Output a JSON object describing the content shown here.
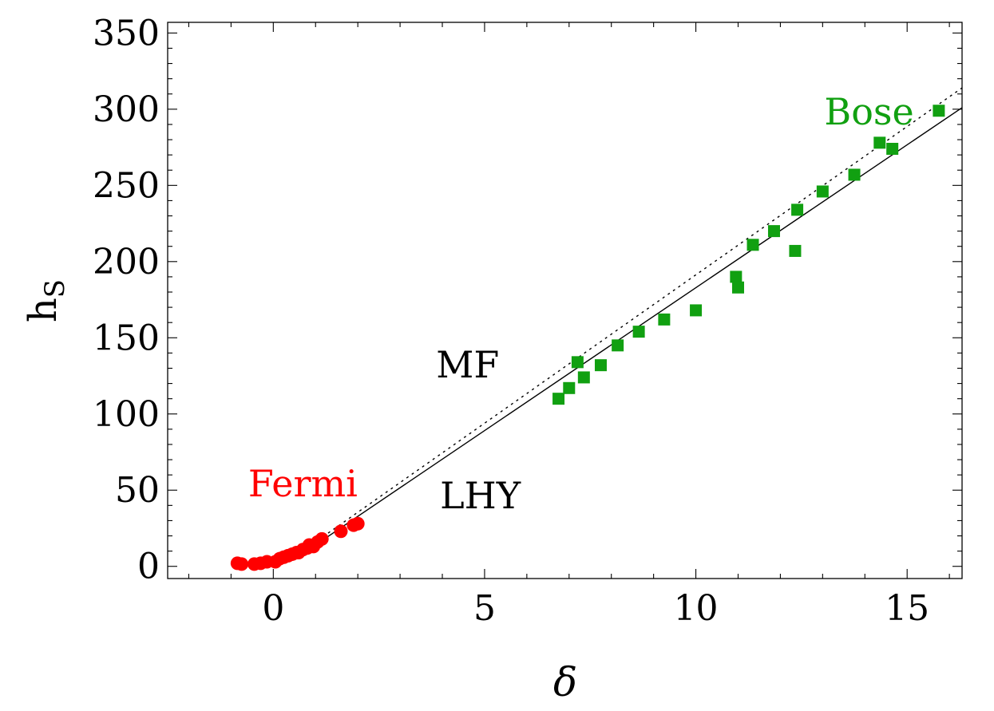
{
  "chart_data": {
    "type": "scatter",
    "xlabel": "δ",
    "ylabel": "h",
    "ylabel_subscript": "S",
    "xlim": [
      -2.5,
      16.3
    ],
    "ylim": [
      -8,
      357
    ],
    "xticks": [
      0,
      5,
      10,
      15
    ],
    "xtick_labels": [
      "0",
      "5",
      "10",
      "15"
    ],
    "yticks": [
      0,
      50,
      100,
      150,
      200,
      250,
      300,
      350
    ],
    "ytick_labels": [
      "0",
      "50",
      "100",
      "150",
      "200",
      "250",
      "300",
      "350"
    ],
    "grid": false,
    "series": [
      {
        "name": "Fermi",
        "kind": "points",
        "marker": "circle",
        "color": "#ff0000",
        "x": [
          -0.85,
          -0.75,
          -0.45,
          -0.3,
          -0.15,
          0.05,
          0.15,
          0.25,
          0.35,
          0.45,
          0.55,
          0.6,
          0.7,
          0.8,
          0.85,
          0.95,
          1.05,
          1.15,
          1.6,
          1.9,
          2.0
        ],
        "y": [
          2,
          1.5,
          1.5,
          2,
          3,
          3,
          5,
          6,
          7,
          8,
          9,
          9,
          11,
          12,
          14,
          13,
          16,
          18,
          23,
          27,
          28
        ]
      },
      {
        "name": "Bose",
        "kind": "points",
        "marker": "square",
        "color": "#11a011",
        "x": [
          6.75,
          7.0,
          7.2,
          7.35,
          7.75,
          8.15,
          8.65,
          9.25,
          10.0,
          10.95,
          11.0,
          11.35,
          11.85,
          12.35,
          12.4,
          13.0,
          13.75,
          14.35,
          14.65,
          15.75
        ],
        "y": [
          110,
          117,
          134,
          124,
          132,
          145,
          154,
          162,
          168,
          190,
          183,
          211,
          220,
          207,
          234,
          246,
          257,
          278,
          274,
          299
        ]
      },
      {
        "name": "MF",
        "kind": "line",
        "style": "dotted",
        "color": "#000000",
        "x": [
          1.05,
          16.3
        ],
        "y": [
          17,
          314
        ]
      },
      {
        "name": "LHY",
        "kind": "line",
        "style": "solid",
        "color": "#000000",
        "x": [
          1.05,
          16.3
        ],
        "y": [
          15,
          301
        ]
      }
    ],
    "annotations": [
      {
        "text": "Fermi",
        "x": 0.7,
        "y": 46,
        "color": "#ff0000"
      },
      {
        "text": "LHY",
        "x": 4.9,
        "y": 38,
        "color": "#000000"
      },
      {
        "text": "MF",
        "x": 4.6,
        "y": 124,
        "color": "#000000"
      },
      {
        "text": "Bose",
        "x": 14.1,
        "y": 290,
        "color": "#11a011"
      }
    ]
  }
}
